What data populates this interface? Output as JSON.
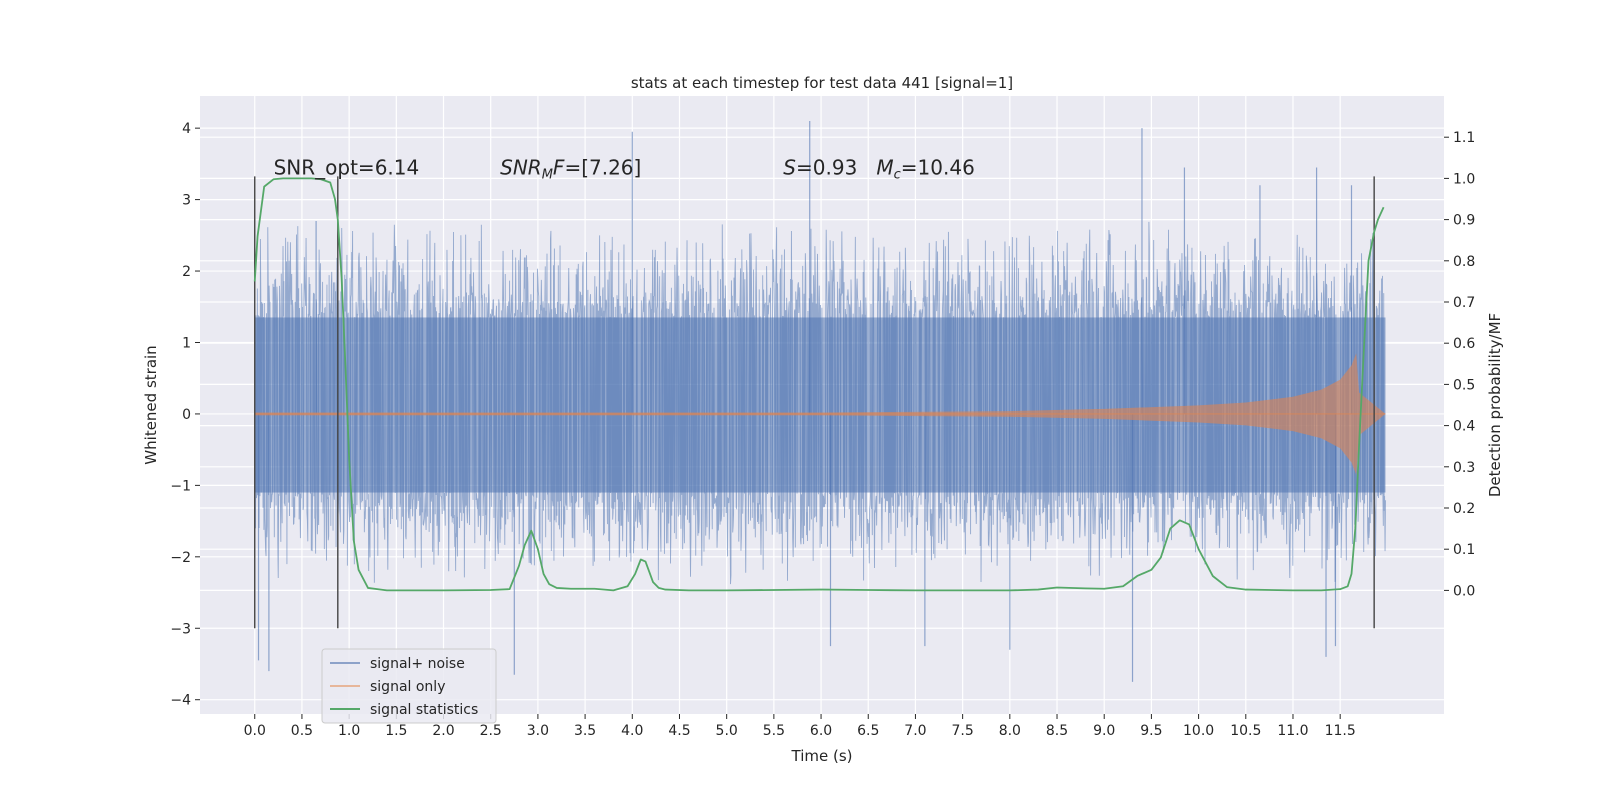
{
  "chart_data": {
    "type": "line",
    "title": "stats at each timestep for test data 441 [signal=1]",
    "xlabel": "Time (s)",
    "ylabel_left": "Whitened strain",
    "ylabel_right": "Detection probability/MF",
    "xlim": [
      -0.58,
      12.6
    ],
    "ylim_left": [
      -4.2,
      4.45
    ],
    "ylim_right": [
      -0.3,
      1.2
    ],
    "x_ticks": [
      0.0,
      0.5,
      1.0,
      1.5,
      2.0,
      2.5,
      3.0,
      3.5,
      4.0,
      4.5,
      5.0,
      5.5,
      6.0,
      6.5,
      7.0,
      7.5,
      8.0,
      8.5,
      9.0,
      9.5,
      10.0,
      10.5,
      11.0,
      11.5
    ],
    "x_tick_labels": [
      "0.0",
      "0.5",
      "1.0",
      "1.5",
      "2.0",
      "2.5",
      "3.0",
      "3.5",
      "4.0",
      "4.5",
      "5.0",
      "5.5",
      "6.0",
      "6.5",
      "7.0",
      "7.5",
      "8.0",
      "8.5",
      "9.0",
      "9.5",
      "10.0",
      "10.5",
      "11.0",
      "11.5"
    ],
    "y_ticks_left": [
      -4,
      -3,
      -2,
      -1,
      0,
      1,
      2,
      3,
      4
    ],
    "y_tick_labels_left": [
      "−4",
      "−3",
      "−2",
      "−1",
      "0",
      "1",
      "2",
      "3",
      "4"
    ],
    "y_ticks_right": [
      0.0,
      0.1,
      0.2,
      0.3,
      0.4,
      0.5,
      0.6,
      0.7,
      0.8,
      0.9,
      1.0,
      1.1
    ],
    "y_tick_labels_right": [
      "0.0",
      "0.1",
      "0.2",
      "0.3",
      "0.4",
      "0.5",
      "0.6",
      "0.7",
      "0.8",
      "0.9",
      "1.0",
      "1.1"
    ],
    "grid": true,
    "legend_placement": "lower-left",
    "colors": {
      "plot_bg": "#eaeaf2",
      "grid": "#ffffff",
      "noise": "#4c72b0",
      "signal": "#dd8452",
      "stats": "#55a868",
      "vlines": "#444444"
    },
    "series": [
      {
        "name": "signal+ noise",
        "axis": "left",
        "style": "dense noise trace",
        "x_range": [
          0.0,
          11.98
        ],
        "core_band": [
          -1.1,
          1.35
        ],
        "envelope_peaks": [
          [
            0.04,
            -3.45
          ],
          [
            0.15,
            -3.6
          ],
          [
            0.65,
            2.7
          ],
          [
            2.75,
            -3.65
          ],
          [
            4.0,
            3.95
          ],
          [
            5.88,
            4.1
          ],
          [
            6.1,
            -3.25
          ],
          [
            7.1,
            -3.25
          ],
          [
            8.0,
            -3.3
          ],
          [
            9.3,
            -3.75
          ],
          [
            9.4,
            4.0
          ],
          [
            9.85,
            3.45
          ],
          [
            10.65,
            3.2
          ],
          [
            11.25,
            3.45
          ],
          [
            11.35,
            -3.4
          ],
          [
            11.45,
            -3.25
          ],
          [
            11.62,
            3.2
          ]
        ]
      },
      {
        "name": "signal only",
        "axis": "left",
        "style": "chirp",
        "envelope": [
          [
            0.0,
            0.02
          ],
          [
            6.0,
            0.02
          ],
          [
            8.0,
            0.04
          ],
          [
            9.0,
            0.07
          ],
          [
            10.0,
            0.12
          ],
          [
            10.5,
            0.16
          ],
          [
            11.0,
            0.24
          ],
          [
            11.3,
            0.34
          ],
          [
            11.5,
            0.48
          ],
          [
            11.62,
            0.68
          ],
          [
            11.67,
            0.85
          ],
          [
            11.7,
            0.3
          ],
          [
            11.98,
            0.0
          ]
        ]
      },
      {
        "name": "signal statistics",
        "axis": "right",
        "style": "line",
        "x": [
          0.0,
          0.03,
          0.1,
          0.2,
          0.3,
          0.4,
          0.5,
          0.6,
          0.7,
          0.8,
          0.85,
          0.88,
          0.92,
          0.96,
          1.0,
          1.05,
          1.1,
          1.2,
          1.4,
          2.0,
          2.5,
          2.7,
          2.8,
          2.86,
          2.93,
          3.0,
          3.06,
          3.12,
          3.2,
          3.35,
          3.6,
          3.8,
          3.95,
          4.03,
          4.09,
          4.14,
          4.18,
          4.22,
          4.28,
          4.35,
          4.6,
          5.0,
          6.0,
          6.5,
          7.0,
          8.0,
          8.3,
          8.5,
          8.8,
          9.0,
          9.2,
          9.35,
          9.5,
          9.6,
          9.7,
          9.8,
          9.9,
          10.0,
          10.15,
          10.3,
          10.5,
          11.0,
          11.3,
          11.5,
          11.58,
          11.62,
          11.66,
          11.7,
          11.75,
          11.8,
          11.86,
          11.9,
          11.96
        ],
        "values": [
          0.75,
          0.86,
          0.98,
          0.998,
          1.0,
          1.0,
          1.0,
          1.0,
          0.998,
          0.99,
          0.95,
          0.9,
          0.76,
          0.55,
          0.32,
          0.12,
          0.05,
          0.006,
          0.0,
          0.0,
          0.001,
          0.003,
          0.06,
          0.11,
          0.145,
          0.1,
          0.04,
          0.015,
          0.006,
          0.004,
          0.004,
          0.0,
          0.01,
          0.04,
          0.075,
          0.07,
          0.045,
          0.02,
          0.006,
          0.002,
          0.0,
          0.0,
          0.002,
          0.001,
          0.0,
          0.0,
          0.002,
          0.007,
          0.005,
          0.004,
          0.01,
          0.035,
          0.05,
          0.08,
          0.15,
          0.17,
          0.16,
          0.1,
          0.035,
          0.008,
          0.002,
          0.0,
          0.0,
          0.003,
          0.01,
          0.04,
          0.15,
          0.35,
          0.58,
          0.8,
          0.87,
          0.9,
          0.93
        ]
      }
    ],
    "vertical_markers": [
      0.0,
      0.88,
      11.86
    ],
    "annotations": [
      {
        "text": "SNR_opt=6.14",
        "x": 0.2,
        "y_right": 1.01
      },
      {
        "text": "SNR_MF=[7.26]",
        "x": 2.6,
        "y_right": 1.01
      },
      {
        "text": "S=0.93   M_c=10.46",
        "x": 5.6,
        "y_right": 1.01
      }
    ]
  }
}
